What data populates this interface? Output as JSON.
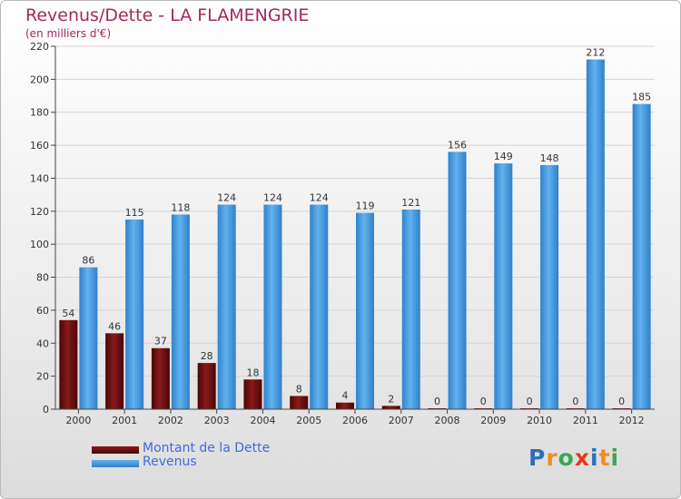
{
  "title": "Revenus/Dette - LA FLAMENGRIE",
  "subtitle": "(en milliers d'€)",
  "logo": {
    "text": "Proxiti",
    "letters": [
      "P",
      "r",
      "o",
      "x",
      "i",
      "t",
      "i"
    ],
    "colors": [
      "#2e6fba",
      "#f28e1c",
      "#3aa655",
      "#e8381b",
      "#2e6fba",
      "#f28e1c",
      "#3aa655"
    ]
  },
  "legend": {
    "items": [
      {
        "label": "Montant de la Dette",
        "color": "#6b0d0d"
      },
      {
        "label": "Revenus",
        "color": "#4a9ee0"
      }
    ]
  },
  "chart_data": {
    "type": "bar",
    "categories": [
      "2000",
      "2001",
      "2002",
      "2003",
      "2004",
      "2005",
      "2006",
      "2007",
      "2008",
      "2009",
      "2010",
      "2011",
      "2012"
    ],
    "series": [
      {
        "name": "Montant de la Dette",
        "values": [
          54,
          46,
          37,
          28,
          18,
          8,
          4,
          2,
          0,
          0,
          0,
          0,
          0
        ],
        "color": "#6b0d0d"
      },
      {
        "name": "Revenus",
        "values": [
          86,
          115,
          118,
          124,
          124,
          124,
          119,
          121,
          156,
          149,
          148,
          212,
          185
        ],
        "color": "#4a9ee0"
      }
    ],
    "yticks": [
      0,
      20,
      40,
      60,
      80,
      100,
      120,
      140,
      160,
      180,
      200,
      220
    ],
    "ylim": [
      0,
      220
    ],
    "title": "Revenus/Dette - LA FLAMENGRIE",
    "ylabel": "(en milliers d'€)",
    "xlabel": ""
  }
}
